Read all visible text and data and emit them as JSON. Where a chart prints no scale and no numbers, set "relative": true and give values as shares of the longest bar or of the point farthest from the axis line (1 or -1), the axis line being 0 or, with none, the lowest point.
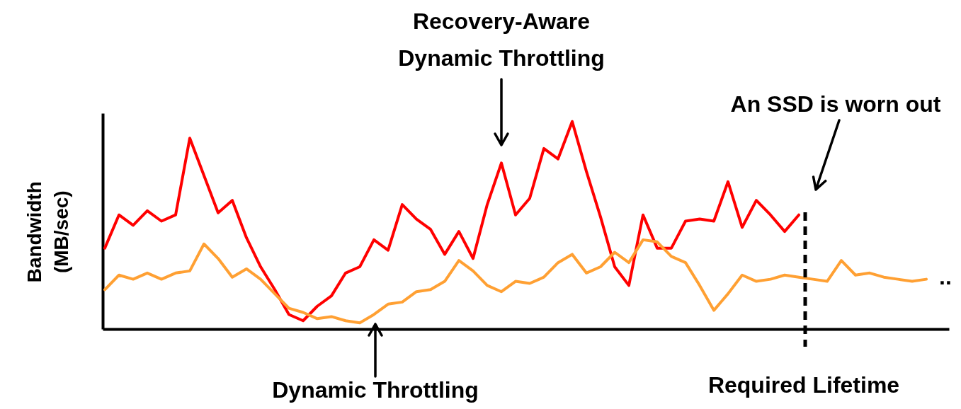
{
  "chart_data": {
    "type": "line",
    "relative": true,
    "ylabel": "Bandwidth (MB/sec)",
    "categories": [
      null,
      null,
      null,
      null,
      null,
      null,
      null,
      null,
      null,
      null,
      null,
      null,
      null,
      null,
      null,
      null,
      null,
      null,
      null,
      null,
      null,
      null,
      null,
      null,
      null,
      null,
      null,
      null,
      null,
      null,
      null,
      null,
      null,
      null,
      null,
      null,
      null,
      null,
      null,
      null,
      null,
      null,
      null,
      null,
      null,
      null,
      null,
      null,
      null,
      null,
      null,
      null,
      null,
      null,
      null,
      null,
      null,
      null,
      null
    ],
    "series": [
      {
        "color": "#ff0000",
        "values": [
          0.39,
          0.55,
          0.5,
          0.57,
          0.52,
          0.55,
          0.92,
          0.74,
          0.56,
          0.62,
          0.44,
          0.3,
          0.19,
          0.07,
          0.04,
          0.11,
          0.16,
          0.27,
          0.3,
          0.43,
          0.38,
          0.6,
          0.53,
          0.48,
          0.36,
          0.47,
          0.34,
          0.6,
          0.8,
          0.55,
          0.63,
          0.87,
          0.82,
          1.0,
          0.76,
          0.54,
          0.3,
          0.21,
          0.55,
          0.39,
          0.39,
          0.52,
          0.53,
          0.52,
          0.71,
          0.49,
          0.62,
          0.55,
          0.47,
          0.55,
          null,
          null,
          null,
          null,
          null,
          null,
          null,
          null,
          null
        ]
      },
      {
        "color": "#ffa033",
        "values": [
          0.19,
          0.26,
          0.24,
          0.27,
          0.24,
          0.27,
          0.28,
          0.41,
          0.34,
          0.25,
          0.29,
          0.24,
          0.17,
          0.1,
          0.08,
          0.05,
          0.06,
          0.04,
          0.03,
          0.07,
          0.12,
          0.13,
          0.18,
          0.19,
          0.23,
          0.33,
          0.28,
          0.21,
          0.18,
          0.23,
          0.22,
          0.25,
          0.32,
          0.36,
          0.27,
          0.3,
          0.37,
          0.32,
          0.43,
          0.42,
          0.35,
          0.32,
          0.21,
          0.09,
          0.17,
          0.26,
          0.23,
          0.24,
          0.26,
          0.25,
          0.24,
          0.23,
          0.33,
          0.26,
          0.27,
          0.25,
          0.24,
          0.23,
          0.24
        ]
      }
    ],
    "annotations": [
      "Recovery-Aware Dynamic Throttling",
      "Dynamic Throttling",
      "An SSD is worn out",
      "..",
      "Required Lifetime"
    ],
    "grid": false,
    "line_style": "solid",
    "marker": "none"
  }
}
